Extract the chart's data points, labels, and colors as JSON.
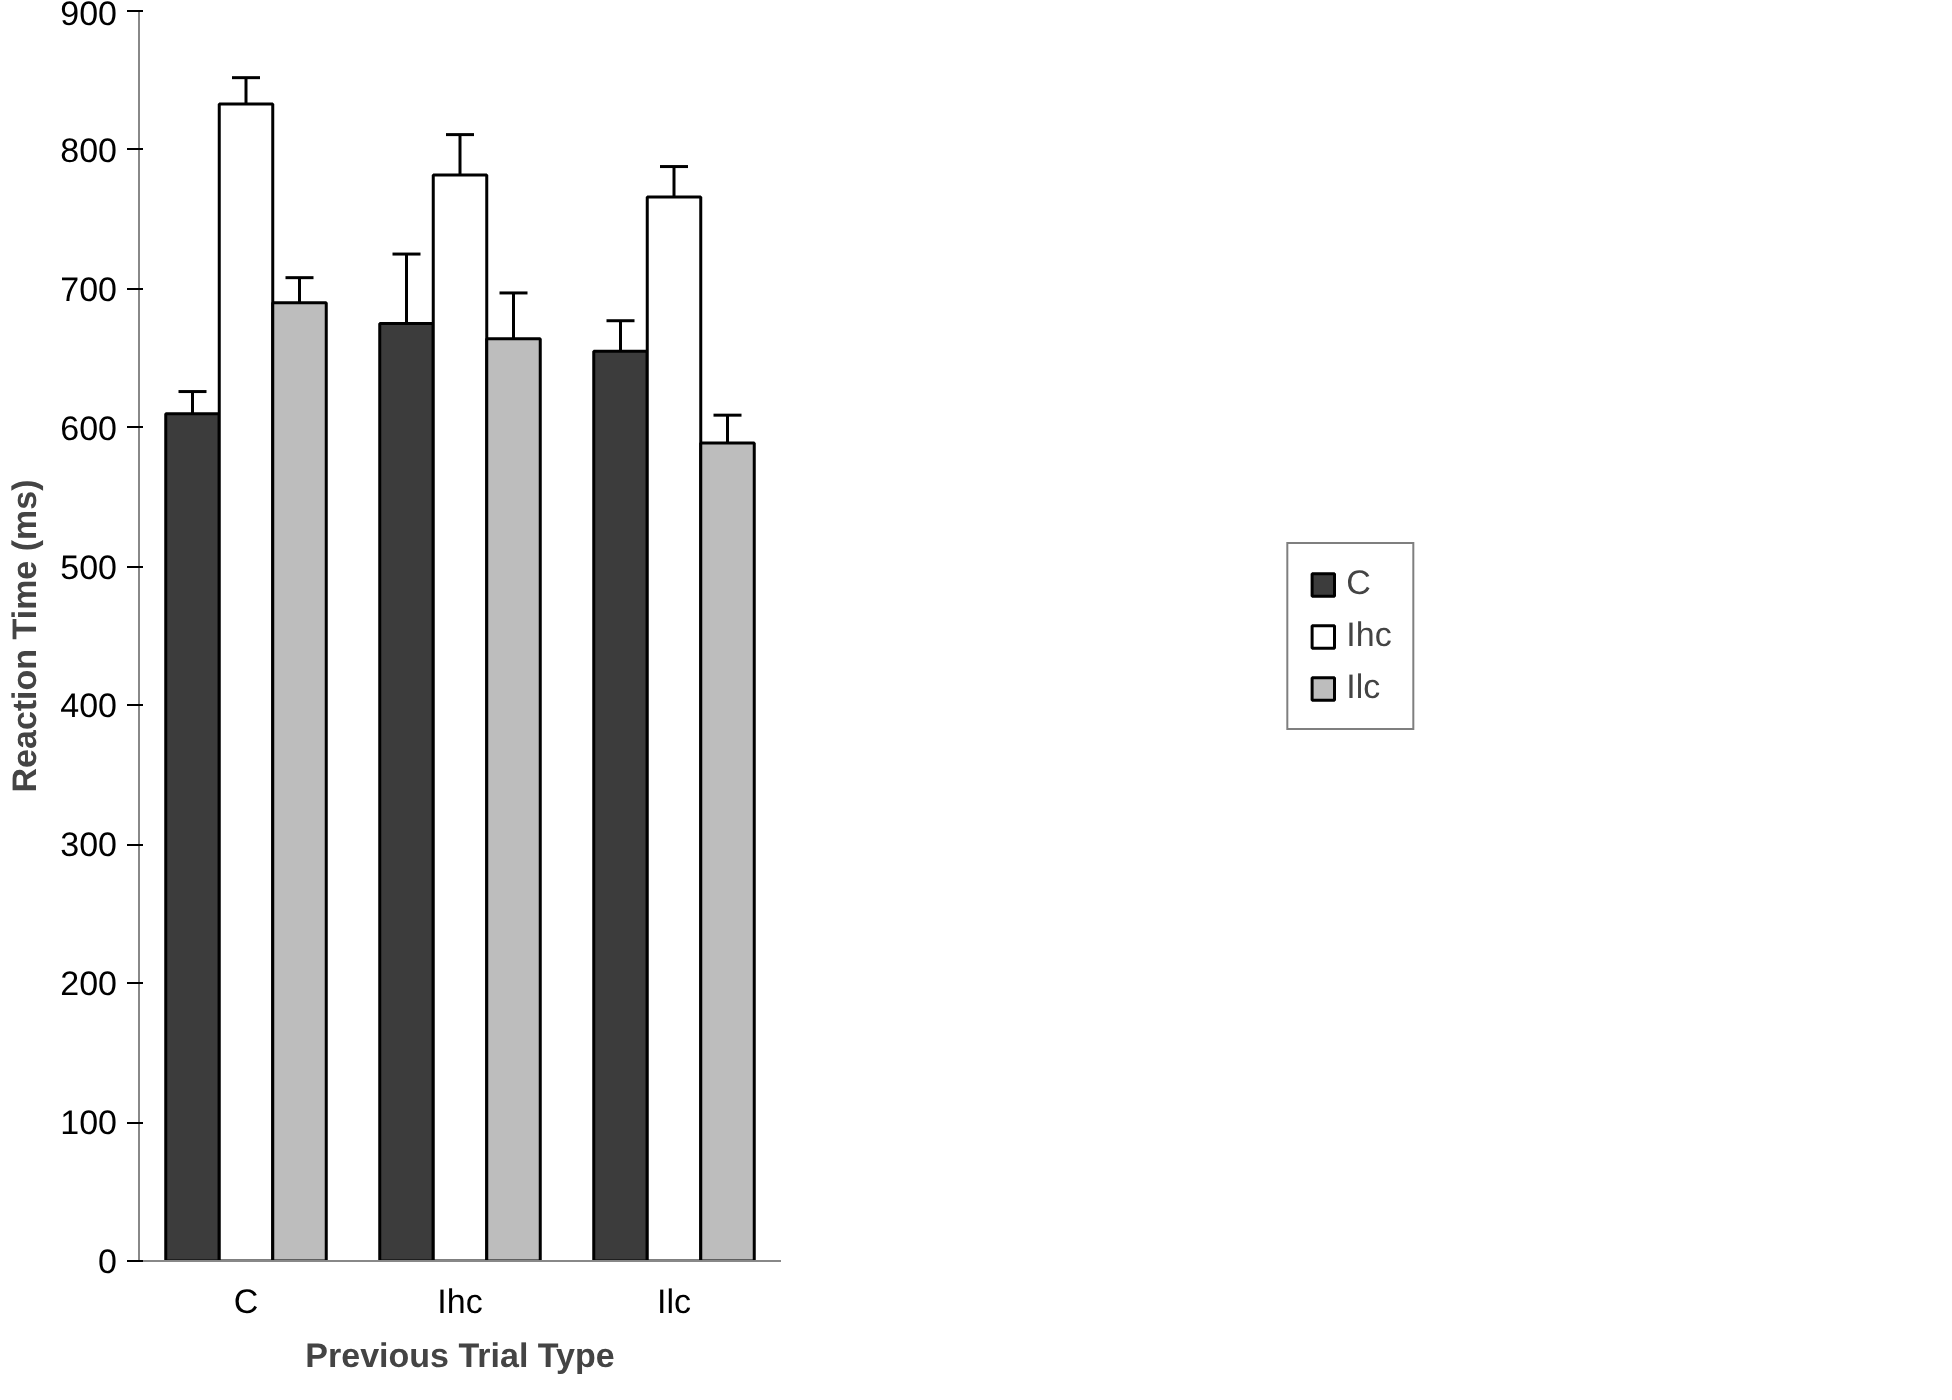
{
  "chart_data": {
    "type": "bar",
    "xlabel": "Previous Trial Type",
    "ylabel": "Reaction Time (ms)",
    "categories": [
      "C",
      "Ihc",
      "Ilc"
    ],
    "series": [
      {
        "name": "C",
        "color": "#3c3c3c",
        "values": [
          610,
          675,
          655
        ],
        "errors": [
          16,
          50,
          22
        ]
      },
      {
        "name": "Ihc",
        "color": "#ffffff",
        "values": [
          833,
          782,
          766
        ],
        "errors": [
          19,
          29,
          22
        ]
      },
      {
        "name": "Ilc",
        "color": "#bdbdbd",
        "values": [
          690,
          664,
          589
        ],
        "errors": [
          18,
          33,
          20
        ]
      }
    ],
    "ylim": [
      0,
      900
    ],
    "yticks": [
      0,
      100,
      200,
      300,
      400,
      500,
      600,
      700,
      800,
      900
    ],
    "grid": false,
    "legend": "right"
  }
}
